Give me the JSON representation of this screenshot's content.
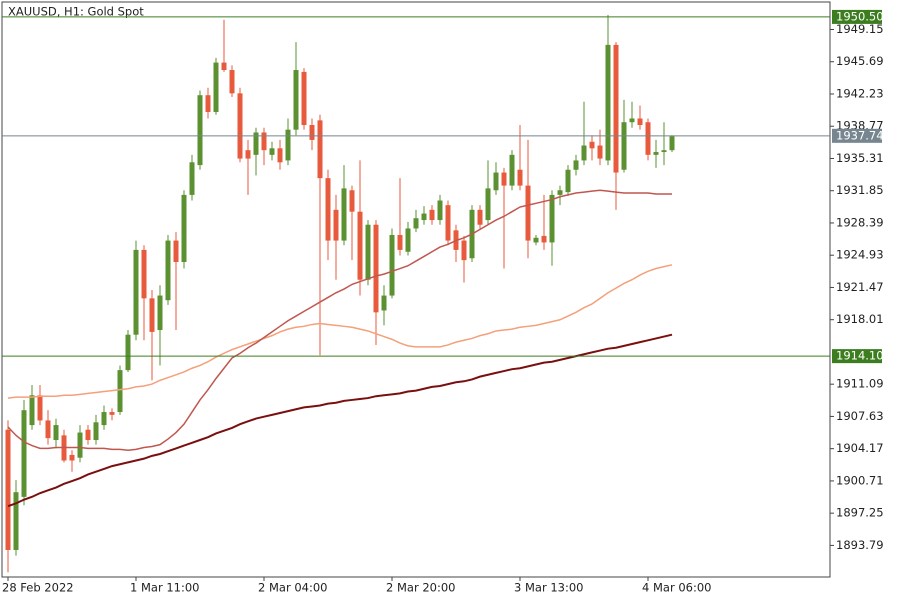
{
  "chart_data": {
    "type": "candlestick",
    "title": "XAUUSD, H1:  Gold Spot",
    "categories": [
      "28 Feb 2022",
      null,
      null,
      null,
      null,
      null,
      null,
      null,
      null,
      null,
      null,
      null,
      null,
      null,
      null,
      null,
      "1 Mar 11:00",
      null,
      null,
      null,
      null,
      null,
      null,
      null,
      null,
      null,
      null,
      null,
      null,
      null,
      null,
      null,
      "2 Mar 04:00",
      null,
      null,
      null,
      null,
      null,
      null,
      null,
      null,
      null,
      null,
      null,
      null,
      null,
      null,
      null,
      "2 Mar 20:00",
      null,
      null,
      null,
      null,
      null,
      null,
      null,
      null,
      null,
      null,
      null,
      null,
      null,
      null,
      null,
      "3 Mar 13:00",
      null,
      null,
      null,
      null,
      null,
      null,
      null,
      null,
      null,
      null,
      null,
      null,
      null,
      null,
      null,
      "4 Mar 06:00",
      null,
      null,
      null
    ],
    "open": [
      1906.2,
      1893.3,
      1899.0,
      1906.7,
      1909.9,
      1907.2,
      1905.1,
      1905.6,
      1903.5,
      1903.2,
      1906.2,
      1905.1,
      1906.7,
      1908.1,
      1908.1,
      1912.6,
      1916.4,
      1925.5,
      1920.3,
      1916.9,
      1920.1,
      1926.5,
      1924.2,
      1931.4,
      1934.6,
      1942.1,
      1940.3,
      1945.6,
      1944.8,
      1942.3,
      1936.2,
      1935.7,
      1938.1,
      1935.7,
      1936.4,
      1935.1,
      1938.4,
      1944.6,
      1938.9,
      1939.4,
      1933.2,
      1929.8,
      1926.5,
      1931.9,
      1929.6,
      1922.3,
      1928.2,
      1919.0,
      1920.6,
      1927.1,
      1925.3,
      1927.8,
      1928.7,
      1929.8,
      1928.7,
      1930.3,
      1927.6,
      1926.5,
      1924.6,
      1929.8,
      1928.7,
      1931.9,
      1933.8,
      1932.4,
      1934.1,
      1932.4,
      1926.3,
      1927.0,
      1926.3,
      1931.4,
      1931.7,
      1934.1,
      1935.1,
      1937.1,
      1936.7,
      1935.1,
      1947.5,
      1934.1,
      1939.2,
      1939.6,
      1939.2,
      1935.7,
      1936.0,
      1936.2
    ],
    "high": [
      1907.2,
      1900.8,
      1909.4,
      1911.0,
      1911.0,
      1908.3,
      1907.4,
      1906.2,
      1904.0,
      1906.7,
      1906.7,
      1907.8,
      1908.8,
      1908.5,
      1913.1,
      1916.9,
      1926.5,
      1926.0,
      1921.2,
      1921.7,
      1927.1,
      1927.4,
      1931.9,
      1935.7,
      1942.6,
      1942.9,
      1946.1,
      1950.2,
      1945.3,
      1942.9,
      1937.3,
      1938.6,
      1938.6,
      1937.1,
      1937.3,
      1939.6,
      1947.8,
      1945.0,
      1939.6,
      1940.0,
      1934.1,
      1931.4,
      1934.6,
      1932.4,
      1935.1,
      1928.7,
      1928.7,
      1921.7,
      1927.8,
      1933.2,
      1928.5,
      1929.8,
      1930.2,
      1930.3,
      1931.4,
      1930.8,
      1928.2,
      1927.0,
      1930.3,
      1930.3,
      1935.1,
      1934.9,
      1934.3,
      1936.2,
      1938.9,
      1937.3,
      1927.1,
      1931.4,
      1931.9,
      1932.4,
      1934.6,
      1935.7,
      1941.4,
      1937.8,
      1938.4,
      1950.7,
      1947.8,
      1941.6,
      1941.4,
      1941.0,
      1939.6,
      1937.3,
      1939.2,
      1937.8
    ],
    "low": [
      1890.9,
      1892.7,
      1898.1,
      1906.2,
      1906.7,
      1904.6,
      1904.2,
      1902.7,
      1901.7,
      1902.7,
      1904.6,
      1904.6,
      1906.2,
      1907.2,
      1907.8,
      1912.4,
      1915.8,
      1915.8,
      1911.5,
      1913.1,
      1919.6,
      1916.9,
      1923.5,
      1930.8,
      1934.1,
      1939.6,
      1940.0,
      1944.6,
      1941.9,
      1934.9,
      1931.4,
      1933.5,
      1934.6,
      1935.1,
      1934.1,
      1934.6,
      1937.8,
      1938.4,
      1936.2,
      1914.2,
      1924.4,
      1922.3,
      1926.0,
      1924.4,
      1920.6,
      1921.7,
      1915.3,
      1917.4,
      1920.3,
      1924.9,
      1924.9,
      1927.4,
      1928.2,
      1928.2,
      1928.2,
      1926.0,
      1924.2,
      1922.0,
      1924.2,
      1927.8,
      1928.2,
      1931.4,
      1923.5,
      1931.9,
      1931.9,
      1924.6,
      1926.0,
      1925.5,
      1923.8,
      1930.3,
      1931.3,
      1933.5,
      1934.6,
      1935.1,
      1934.6,
      1934.6,
      1929.8,
      1933.8,
      1938.6,
      1938.4,
      1935.1,
      1934.3,
      1934.6,
      1936.0
    ],
    "close": [
      1893.3,
      1899.5,
      1908.3,
      1909.9,
      1907.2,
      1905.3,
      1906.7,
      1902.9,
      1902.9,
      1905.9,
      1905.1,
      1907.0,
      1908.1,
      1907.8,
      1912.6,
      1916.4,
      1925.5,
      1920.3,
      1916.7,
      1920.6,
      1926.5,
      1924.2,
      1931.4,
      1934.9,
      1942.1,
      1940.3,
      1945.6,
      1944.8,
      1942.3,
      1935.3,
      1935.3,
      1938.1,
      1936.2,
      1936.4,
      1934.9,
      1938.4,
      1944.8,
      1938.9,
      1937.3,
      1933.2,
      1926.5,
      1926.5,
      1932.1,
      1929.6,
      1922.3,
      1928.2,
      1918.8,
      1920.6,
      1927.1,
      1925.5,
      1927.8,
      1928.9,
      1929.4,
      1928.7,
      1930.8,
      1926.5,
      1925.5,
      1924.4,
      1929.8,
      1928.2,
      1932.1,
      1933.8,
      1932.4,
      1935.7,
      1932.4,
      1926.5,
      1926.8,
      1926.3,
      1931.4,
      1931.9,
      1934.1,
      1935.1,
      1936.7,
      1936.4,
      1935.3,
      1947.5,
      1933.8,
      1939.2,
      1939.6,
      1938.9,
      1935.7,
      1936.0,
      1936.2,
      1937.7
    ],
    "up_color": "#5b9130",
    "down_color": "#e85a3c",
    "lines": [
      {
        "color": "#7a0f0f",
        "values": [
          1898.0,
          1898.3,
          1898.7,
          1899.0,
          1899.4,
          1899.7,
          1900.0,
          1900.4,
          1900.7,
          1901.0,
          1901.4,
          1901.7,
          1902.0,
          1902.3,
          1902.5,
          1902.7,
          1902.9,
          1903.1,
          1903.4,
          1903.6,
          1903.9,
          1904.2,
          1904.5,
          1904.8,
          1905.1,
          1905.4,
          1905.8,
          1906.1,
          1906.4,
          1906.8,
          1907.1,
          1907.4,
          1907.6,
          1907.8,
          1908.0,
          1908.2,
          1908.4,
          1908.6,
          1908.7,
          1908.8,
          1909.0,
          1909.1,
          1909.3,
          1909.4,
          1909.5,
          1909.6,
          1909.8,
          1909.9,
          1910.0,
          1910.1,
          1910.3,
          1910.4,
          1910.6,
          1910.8,
          1910.9,
          1911.1,
          1911.3,
          1911.4,
          1911.6,
          1911.9,
          1912.1,
          1912.3,
          1912.5,
          1912.7,
          1912.8,
          1913.0,
          1913.2,
          1913.4,
          1913.5,
          1913.7,
          1913.9,
          1914.1,
          1914.3,
          1914.5,
          1914.7,
          1914.9,
          1915.0,
          1915.2,
          1915.4,
          1915.6,
          1915.8,
          1916.0,
          1916.2,
          1916.4
        ]
      },
      {
        "color": "#f4a07a",
        "values": [
          1909.6,
          1909.7,
          1909.7,
          1909.7,
          1909.8,
          1909.8,
          1909.8,
          1909.9,
          1909.9,
          1910.0,
          1910.1,
          1910.2,
          1910.3,
          1910.4,
          1910.5,
          1910.6,
          1910.8,
          1910.9,
          1911.1,
          1911.5,
          1911.8,
          1912.1,
          1912.4,
          1912.8,
          1913.1,
          1913.5,
          1914.0,
          1914.4,
          1914.8,
          1915.1,
          1915.4,
          1915.7,
          1916.0,
          1916.3,
          1916.7,
          1917.0,
          1917.2,
          1917.3,
          1917.5,
          1917.6,
          1917.5,
          1917.4,
          1917.3,
          1917.2,
          1917.0,
          1916.8,
          1916.5,
          1916.2,
          1915.9,
          1915.5,
          1915.2,
          1915.1,
          1915.1,
          1915.1,
          1915.1,
          1915.3,
          1915.6,
          1915.8,
          1916.0,
          1916.3,
          1916.5,
          1916.8,
          1916.9,
          1917.0,
          1917.2,
          1917.3,
          1917.4,
          1917.6,
          1917.8,
          1918.0,
          1918.4,
          1918.8,
          1919.3,
          1919.7,
          1920.3,
          1920.9,
          1921.4,
          1921.9,
          1922.3,
          1922.8,
          1923.2,
          1923.5,
          1923.7,
          1923.9
        ]
      },
      {
        "color": "#c0574f",
        "values": [
          1906.5,
          1905.6,
          1904.9,
          1904.5,
          1904.2,
          1904.2,
          1904.3,
          1904.3,
          1904.3,
          1904.3,
          1904.2,
          1904.2,
          1904.2,
          1904.1,
          1904.1,
          1904.0,
          1904.1,
          1904.3,
          1904.4,
          1904.6,
          1905.2,
          1905.9,
          1906.8,
          1908.1,
          1909.4,
          1910.5,
          1911.7,
          1912.8,
          1913.9,
          1914.4,
          1915.0,
          1915.5,
          1916.1,
          1916.7,
          1917.3,
          1917.9,
          1918.4,
          1918.9,
          1919.4,
          1919.9,
          1920.4,
          1920.9,
          1921.3,
          1921.8,
          1922.1,
          1922.4,
          1922.7,
          1922.9,
          1923.2,
          1923.5,
          1923.8,
          1924.3,
          1924.8,
          1925.3,
          1925.8,
          1926.1,
          1926.5,
          1926.8,
          1927.2,
          1927.7,
          1928.2,
          1928.7,
          1929.1,
          1929.6,
          1930.1,
          1930.3,
          1930.5,
          1930.7,
          1930.9,
          1931.2,
          1931.4,
          1931.6,
          1931.7,
          1931.8,
          1931.9,
          1931.8,
          1931.7,
          1931.6,
          1931.6,
          1931.6,
          1931.6,
          1931.5,
          1931.5,
          1931.5
        ]
      }
    ],
    "levels": [
      {
        "value": 1950.5,
        "label": "1950.50",
        "color": "#3b7d1f"
      },
      {
        "value": 1937.74,
        "label": "1937.74",
        "color": "#76858f"
      },
      {
        "value": 1914.1,
        "label": "1914.10",
        "color": "#3b7d1f"
      }
    ],
    "ylim": [
      1890.4,
      1952.1
    ],
    "yticks": [
      1949.15,
      1945.69,
      1942.23,
      1938.77,
      1935.31,
      1931.85,
      1928.39,
      1924.93,
      1921.47,
      1918.01,
      1911.09,
      1907.63,
      1904.17,
      1900.71,
      1897.25,
      1893.79
    ]
  }
}
